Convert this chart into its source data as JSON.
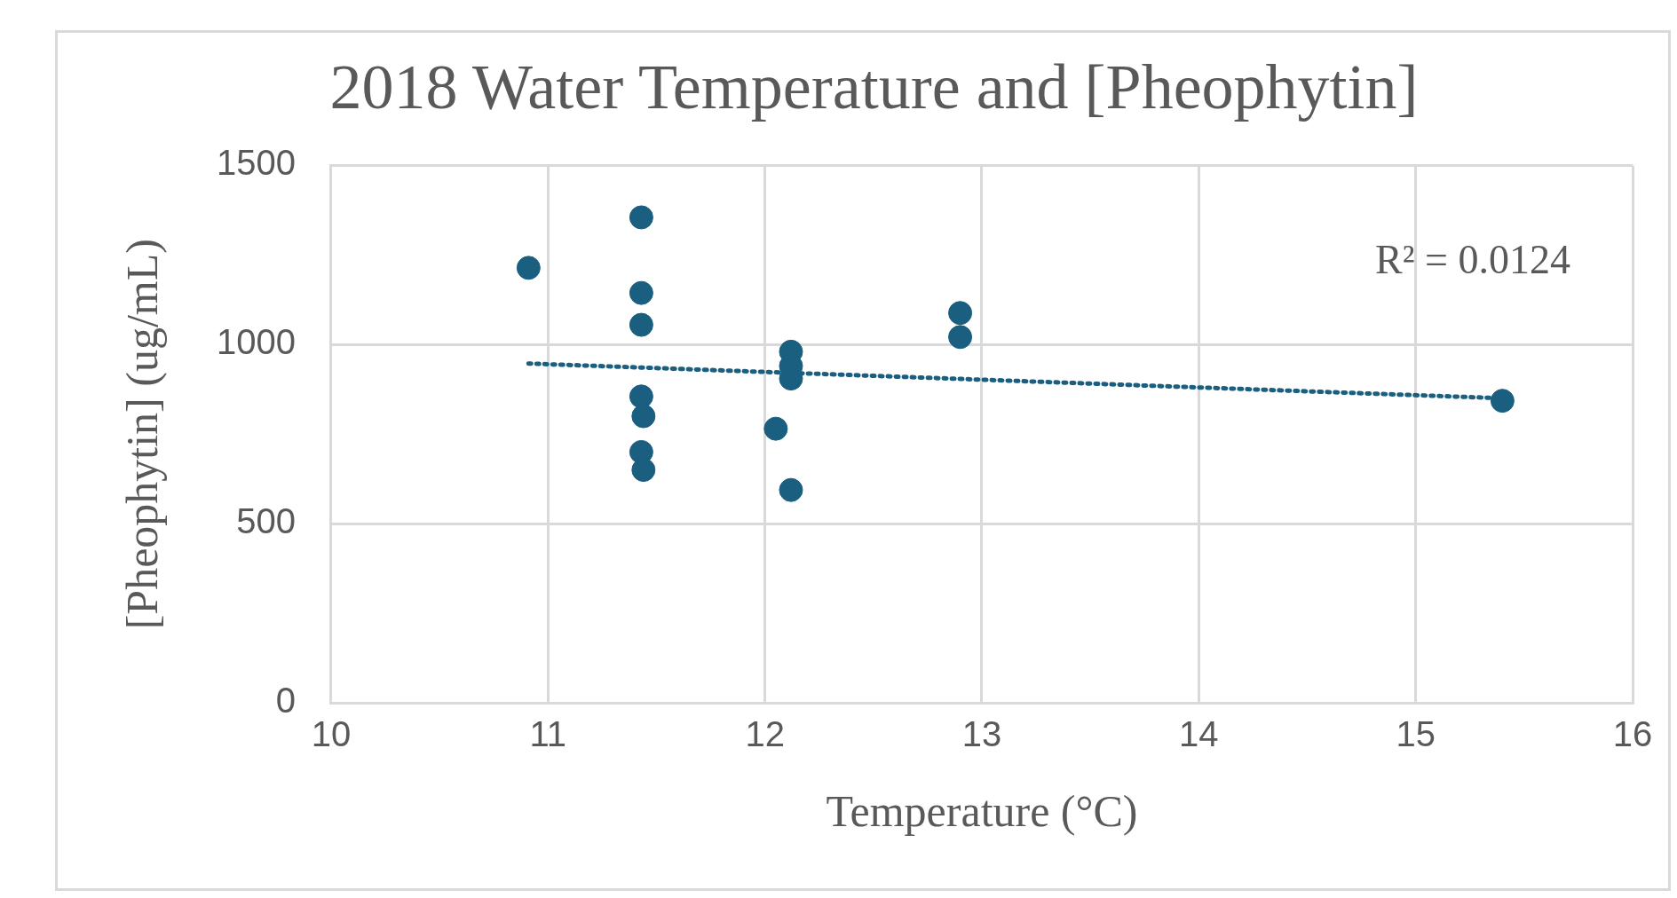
{
  "chart_data": {
    "type": "scatter",
    "title": "2018 Water Temperature and [Pheophytin]",
    "xlabel": "Temperature (°C)",
    "ylabel": "[Pheophytin] (ug/mL)",
    "xlim": [
      10,
      16
    ],
    "xticks": [
      10,
      11,
      12,
      13,
      14,
      15,
      16
    ],
    "ylim": [
      0,
      1500
    ],
    "yticks": [
      0,
      500,
      1000,
      1500
    ],
    "grid": true,
    "legend": false,
    "marker": "circle",
    "series": [
      {
        "color": "#1a5e80",
        "x": [
          10.91,
          11.43,
          11.43,
          11.43,
          11.43,
          11.44,
          11.43,
          11.44,
          12.05,
          12.12,
          12.12,
          12.12,
          12.12,
          12.9,
          12.9,
          15.4
        ],
        "values": [
          1214,
          1355,
          1144,
          1055,
          855,
          800,
          700,
          650,
          765,
          594,
          980,
          940,
          905,
          1088,
          1021,
          843
        ]
      },
      {
        "type": "line",
        "color": "#1a5e80",
        "line_style": "dotted",
        "marker": "none",
        "x": [
          10.91,
          15.4
        ],
        "values": [
          947,
          850
        ]
      }
    ],
    "annotations": [
      "R² = 0.0124"
    ]
  }
}
